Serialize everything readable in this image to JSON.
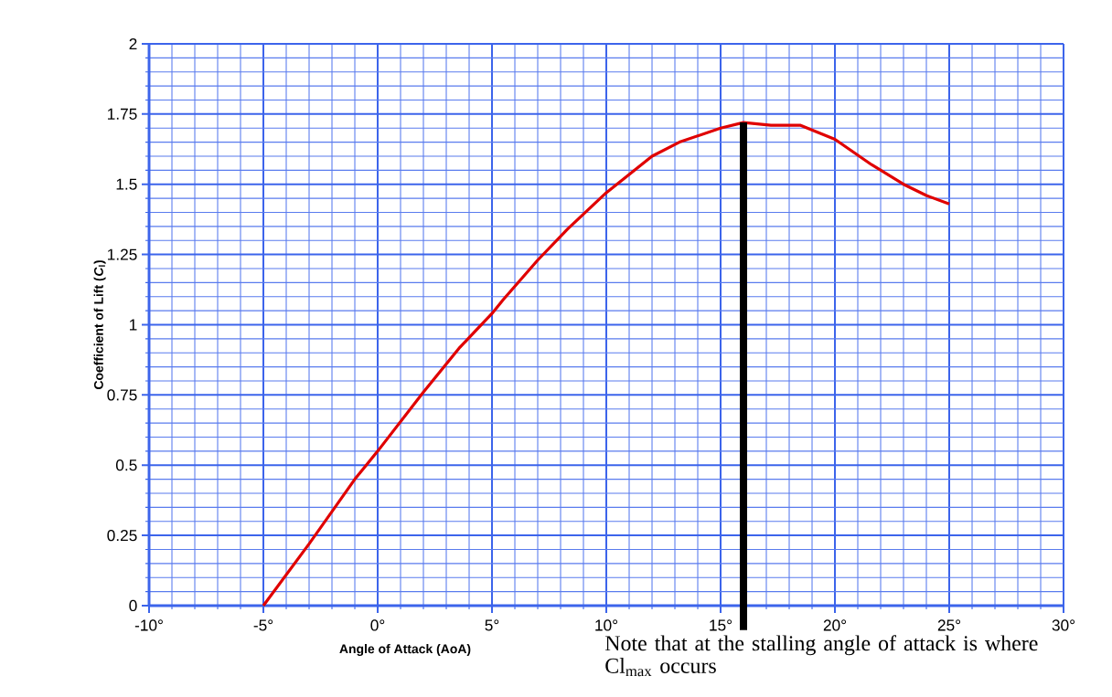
{
  "chart_data": {
    "type": "line",
    "xlabel": "Angle of Attack (AoA)",
    "ylabel": "Coefficient of Lift ($_{}$*C*$_{l}$)",
    "x": [
      -5,
      -3,
      -1,
      0,
      2,
      3.6,
      5,
      5.5,
      7,
      8.3,
      10,
      12,
      13.2,
      15,
      16,
      17.2,
      18.5,
      20,
      21.6,
      23,
      24,
      25
    ],
    "series": [
      {
        "color": "#e00000",
        "values": [
          0,
          0.22,
          0.45,
          0.55,
          0.76,
          0.92,
          1.04,
          1.09,
          1.23,
          1.34,
          1.47,
          1.6,
          1.65,
          1.7,
          1.72,
          1.71,
          1.71,
          1.66,
          1.57,
          1.5,
          1.46,
          1.43
        ]
      }
    ],
    "xlim": [
      -10,
      30
    ],
    "xticks": [
      {
        "value": -10,
        "label": "-10°"
      },
      {
        "value": -9,
        "label": null
      },
      {
        "value": -8,
        "label": null
      },
      {
        "value": -7,
        "label": null
      },
      {
        "value": -6,
        "label": null
      },
      {
        "value": -5,
        "label": "-5°"
      },
      {
        "value": -4,
        "label": null
      },
      {
        "value": -3,
        "label": null
      },
      {
        "value": -2,
        "label": null
      },
      {
        "value": -1,
        "label": null
      },
      {
        "value": 0,
        "label": "0°"
      },
      {
        "value": 1,
        "label": null
      },
      {
        "value": 2,
        "label": null
      },
      {
        "value": 3,
        "label": null
      },
      {
        "value": 4,
        "label": null
      },
      {
        "value": 5,
        "label": "5°"
      },
      {
        "value": 6,
        "label": null
      },
      {
        "value": 7,
        "label": null
      },
      {
        "value": 8,
        "label": null
      },
      {
        "value": 9,
        "label": null
      },
      {
        "value": 10,
        "label": "10°"
      },
      {
        "value": 11,
        "label": null
      },
      {
        "value": 12,
        "label": null
      },
      {
        "value": 13,
        "label": null
      },
      {
        "value": 14,
        "label": null
      },
      {
        "value": 15,
        "label": "15°"
      },
      {
        "value": 16,
        "label": null
      },
      {
        "value": 17,
        "label": null
      },
      {
        "value": 18,
        "label": null
      },
      {
        "value": 19,
        "label": null
      },
      {
        "value": 20,
        "label": "20°"
      },
      {
        "value": 21,
        "label": null
      },
      {
        "value": 22,
        "label": null
      },
      {
        "value": 23,
        "label": null
      },
      {
        "value": 24,
        "label": null
      },
      {
        "value": 25,
        "label": "25°"
      },
      {
        "value": 26,
        "label": null
      },
      {
        "value": 27,
        "label": null
      },
      {
        "value": 28,
        "label": null
      },
      {
        "value": 29,
        "label": null
      },
      {
        "value": 30,
        "label": "30°"
      }
    ],
    "ylim": [
      0,
      2
    ],
    "yticks": [
      0,
      {
        "value": 0.05,
        "label": null
      },
      {
        "value": 0.1,
        "label": null
      },
      {
        "value": 0.15,
        "label": null
      },
      {
        "value": 0.2,
        "label": null
      },
      0.25,
      {
        "value": 0.3,
        "label": null
      },
      {
        "value": 0.35,
        "label": null
      },
      {
        "value": 0.4,
        "label": null
      },
      {
        "value": 0.45,
        "label": null
      },
      0.5,
      {
        "value": 0.55,
        "label": null
      },
      {
        "value": 0.6,
        "label": null
      },
      {
        "value": 0.65,
        "label": null
      },
      {
        "value": 0.7,
        "label": null
      },
      0.75,
      {
        "value": 0.8,
        "label": null
      },
      {
        "value": 0.85,
        "label": null
      },
      {
        "value": 0.9,
        "label": null
      },
      {
        "value": 0.95,
        "label": null
      },
      1,
      {
        "value": 1.05,
        "label": null
      },
      {
        "value": 1.1,
        "label": null
      },
      {
        "value": 1.15,
        "label": null
      },
      {
        "value": 1.2,
        "label": null
      },
      1.25,
      {
        "value": 1.3,
        "label": null
      },
      {
        "value": 1.35,
        "label": null
      },
      {
        "value": 1.4,
        "label": null
      },
      {
        "value": 1.45,
        "label": null
      },
      1.5,
      {
        "value": 1.55,
        "label": null
      },
      {
        "value": 1.6,
        "label": null
      },
      {
        "value": 1.65,
        "label": null
      },
      {
        "value": 1.7,
        "label": null
      },
      1.75,
      {
        "value": 1.8,
        "label": null
      },
      {
        "value": 1.85,
        "label": null
      },
      {
        "value": 1.9,
        "label": null
      },
      {
        "value": 1.95,
        "label": null
      },
      2
    ],
    "grid": true,
    "ref_lines": [
      {
        "axis": "x",
        "value": 16,
        "color": "#000000"
      }
    ],
    "annotations": [
      "Note that at the stalling angle of attack is where Cl$_{max}$ occurs"
    ]
  }
}
